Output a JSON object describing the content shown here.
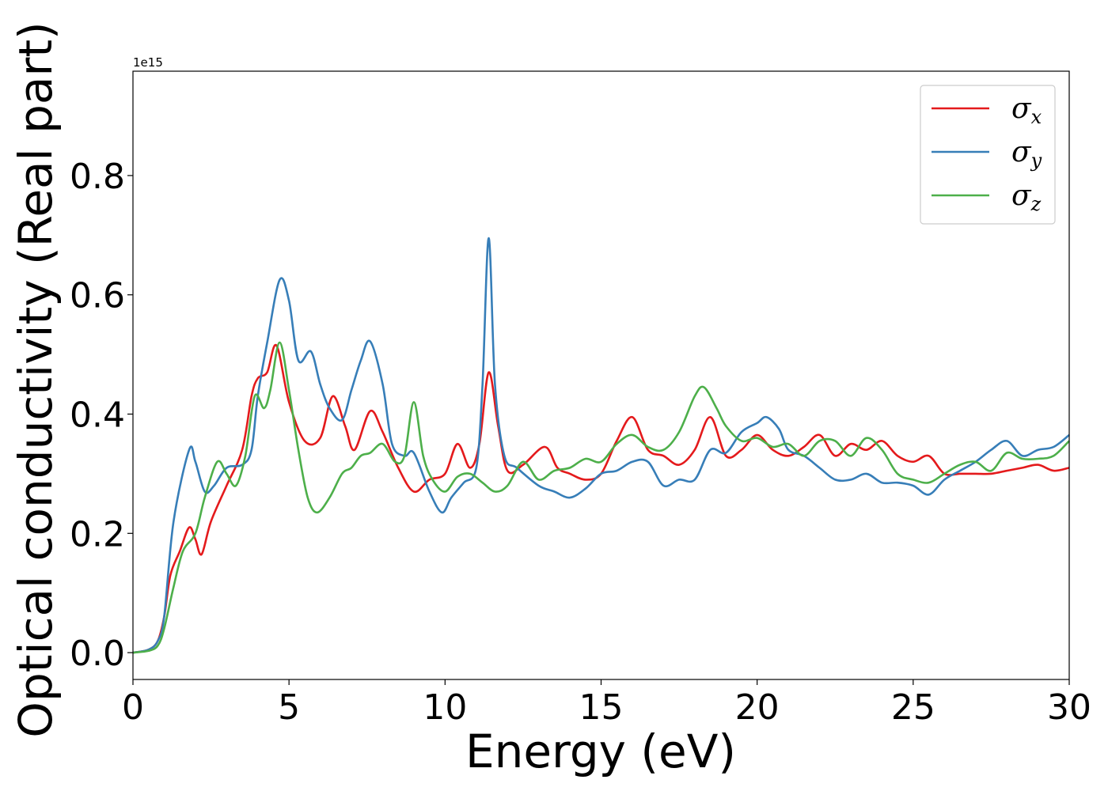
{
  "chart_data": {
    "type": "line",
    "xlabel": "Energy (eV)",
    "ylabel": "Optical conductivity (Real part)",
    "y_offset_label": "1e15",
    "xlim": [
      0,
      30
    ],
    "ylim": [
      -0.045,
      0.975
    ],
    "xticks": [
      0,
      5,
      10,
      15,
      20,
      25,
      30
    ],
    "xtick_labels": [
      "0",
      "5",
      "10",
      "15",
      "20",
      "25",
      "30"
    ],
    "yticks": [
      0.0,
      0.2,
      0.4,
      0.6,
      0.8
    ],
    "ytick_labels": [
      "0.0",
      "0.2",
      "0.4",
      "0.6",
      "0.8"
    ],
    "grid": false,
    "legend_position": "top-right",
    "series": [
      {
        "name": "σx",
        "symbol": "σ",
        "subscript": "x",
        "color": "#e41a1c",
        "x": [
          0,
          0.5,
          0.8,
          1.0,
          1.2,
          1.5,
          1.8,
          2.0,
          2.2,
          2.5,
          3.0,
          3.5,
          3.8,
          4.0,
          4.3,
          4.6,
          5.0,
          5.5,
          6.0,
          6.4,
          6.8,
          7.1,
          7.6,
          8.0,
          8.5,
          9.0,
          9.5,
          10.0,
          10.4,
          10.8,
          11.1,
          11.4,
          11.7,
          12.0,
          12.5,
          13.2,
          13.6,
          14.0,
          14.5,
          15.0,
          15.5,
          16.0,
          16.5,
          17.0,
          17.5,
          18.0,
          18.5,
          19.0,
          19.5,
          20.0,
          20.5,
          21.0,
          21.5,
          22.0,
          22.5,
          23.0,
          23.5,
          24.0,
          24.5,
          25.0,
          25.5,
          26.0,
          26.5,
          27.0,
          27.5,
          28.0,
          28.5,
          29.0,
          29.5,
          30.0
        ],
        "values": [
          0.0,
          0.005,
          0.02,
          0.06,
          0.13,
          0.17,
          0.21,
          0.19,
          0.165,
          0.22,
          0.28,
          0.34,
          0.43,
          0.46,
          0.47,
          0.515,
          0.42,
          0.355,
          0.36,
          0.43,
          0.38,
          0.34,
          0.405,
          0.37,
          0.31,
          0.27,
          0.29,
          0.3,
          0.35,
          0.31,
          0.35,
          0.47,
          0.38,
          0.305,
          0.315,
          0.345,
          0.31,
          0.3,
          0.29,
          0.3,
          0.355,
          0.395,
          0.34,
          0.33,
          0.315,
          0.34,
          0.395,
          0.33,
          0.34,
          0.365,
          0.34,
          0.33,
          0.345,
          0.365,
          0.33,
          0.35,
          0.34,
          0.355,
          0.33,
          0.32,
          0.33,
          0.3,
          0.3,
          0.3,
          0.3,
          0.305,
          0.31,
          0.315,
          0.305,
          0.31
        ]
      },
      {
        "name": "σy",
        "symbol": "σ",
        "subscript": "y",
        "color": "#377eb8",
        "x": [
          0,
          0.5,
          0.8,
          1.0,
          1.3,
          1.8,
          2.0,
          2.3,
          2.6,
          3.0,
          3.5,
          3.8,
          4.0,
          4.3,
          4.7,
          5.0,
          5.3,
          5.7,
          6.0,
          6.3,
          6.7,
          7.0,
          7.3,
          7.6,
          8.0,
          8.3,
          8.7,
          9.0,
          9.5,
          9.9,
          10.2,
          10.6,
          11.0,
          11.2,
          11.4,
          11.6,
          11.9,
          12.3,
          13.0,
          13.5,
          14.0,
          14.5,
          15.0,
          15.5,
          16.0,
          16.5,
          17.0,
          17.5,
          18.0,
          18.5,
          19.0,
          19.5,
          20.0,
          20.3,
          20.7,
          21.0,
          21.5,
          22.0,
          22.5,
          23.0,
          23.5,
          24.0,
          24.5,
          25.0,
          25.5,
          26.0,
          26.5,
          27.0,
          27.5,
          28.0,
          28.5,
          29.0,
          29.5,
          30.0
        ],
        "values": [
          0.0,
          0.005,
          0.02,
          0.06,
          0.22,
          0.34,
          0.32,
          0.27,
          0.28,
          0.31,
          0.315,
          0.34,
          0.43,
          0.52,
          0.625,
          0.59,
          0.49,
          0.505,
          0.45,
          0.41,
          0.39,
          0.44,
          0.49,
          0.522,
          0.45,
          0.35,
          0.33,
          0.335,
          0.27,
          0.235,
          0.26,
          0.285,
          0.31,
          0.45,
          0.695,
          0.45,
          0.33,
          0.31,
          0.28,
          0.27,
          0.26,
          0.275,
          0.3,
          0.305,
          0.32,
          0.32,
          0.28,
          0.29,
          0.29,
          0.34,
          0.335,
          0.37,
          0.385,
          0.395,
          0.375,
          0.34,
          0.33,
          0.31,
          0.29,
          0.29,
          0.3,
          0.285,
          0.285,
          0.28,
          0.265,
          0.29,
          0.305,
          0.32,
          0.34,
          0.355,
          0.33,
          0.34,
          0.345,
          0.365
        ]
      },
      {
        "name": "σz",
        "symbol": "σ",
        "subscript": "z",
        "color": "#4daf4a",
        "x": [
          0,
          0.5,
          0.8,
          1.0,
          1.3,
          1.6,
          2.0,
          2.3,
          2.7,
          3.0,
          3.3,
          3.6,
          3.9,
          4.2,
          4.4,
          4.7,
          5.0,
          5.3,
          5.6,
          5.9,
          6.3,
          6.7,
          7.0,
          7.3,
          7.6,
          8.0,
          8.4,
          8.7,
          9.0,
          9.3,
          9.6,
          10.0,
          10.4,
          10.8,
          11.2,
          11.6,
          12.0,
          12.5,
          13.0,
          13.5,
          14.0,
          14.5,
          15.0,
          15.5,
          16.0,
          16.5,
          17.0,
          17.5,
          18.0,
          18.3,
          18.7,
          19.0,
          19.5,
          20.0,
          20.5,
          21.0,
          21.5,
          22.0,
          22.5,
          23.0,
          23.5,
          24.0,
          24.5,
          25.0,
          25.5,
          26.0,
          26.5,
          27.0,
          27.5,
          28.0,
          28.5,
          29.0,
          29.5,
          30.0
        ],
        "values": [
          0.0,
          0.003,
          0.012,
          0.04,
          0.11,
          0.17,
          0.2,
          0.26,
          0.32,
          0.3,
          0.28,
          0.33,
          0.43,
          0.41,
          0.44,
          0.52,
          0.44,
          0.34,
          0.26,
          0.235,
          0.26,
          0.3,
          0.31,
          0.33,
          0.335,
          0.35,
          0.32,
          0.33,
          0.42,
          0.33,
          0.29,
          0.27,
          0.295,
          0.3,
          0.285,
          0.27,
          0.28,
          0.32,
          0.29,
          0.305,
          0.31,
          0.325,
          0.32,
          0.35,
          0.365,
          0.345,
          0.34,
          0.37,
          0.43,
          0.445,
          0.41,
          0.38,
          0.355,
          0.36,
          0.345,
          0.35,
          0.33,
          0.355,
          0.355,
          0.33,
          0.36,
          0.34,
          0.3,
          0.29,
          0.285,
          0.3,
          0.315,
          0.32,
          0.305,
          0.335,
          0.325,
          0.325,
          0.33,
          0.355
        ]
      }
    ]
  }
}
